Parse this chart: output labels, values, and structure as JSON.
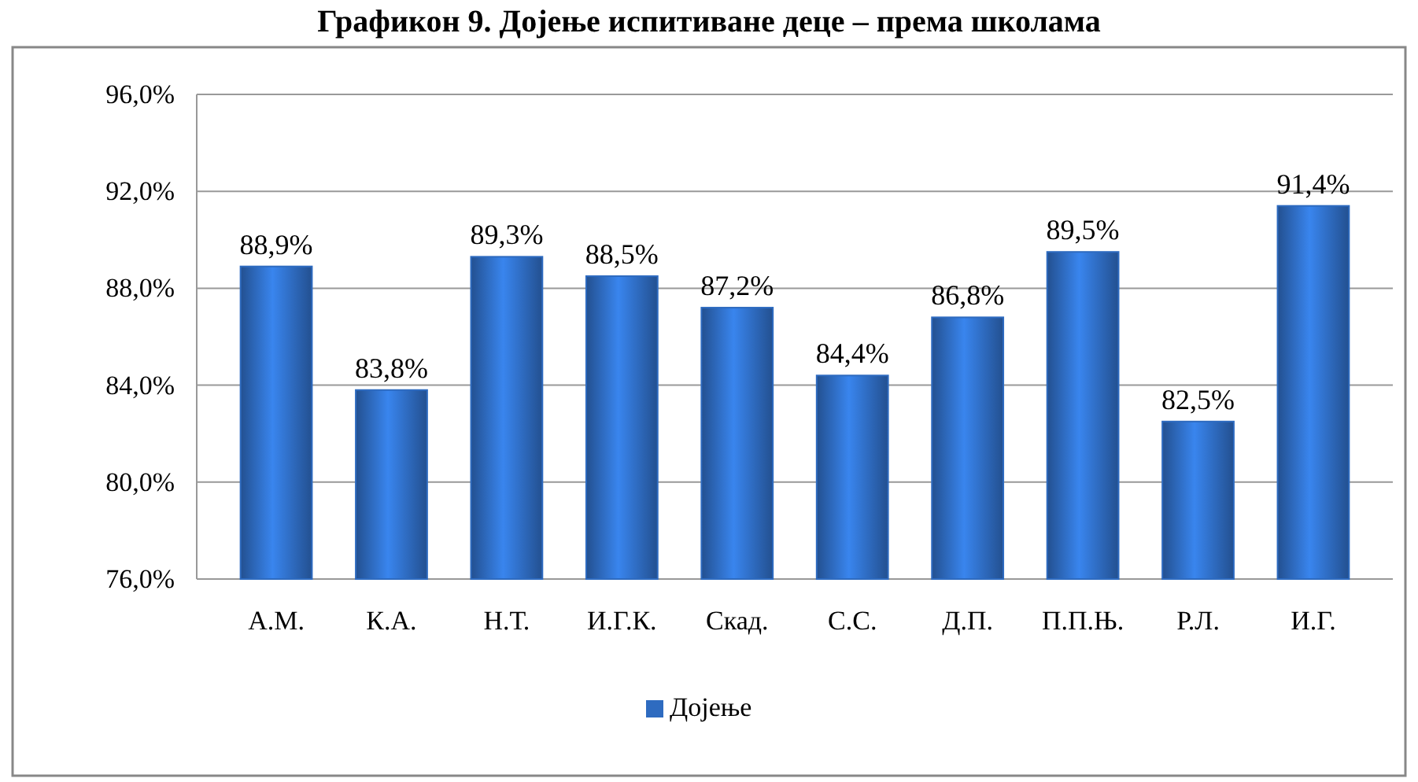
{
  "chart_data": {
    "type": "bar",
    "title": "Графикон 9. Дојење испитиване деце – према школама",
    "categories": [
      "А.М.",
      "К.А.",
      "Н.Т.",
      "И.Г.К.",
      "Скад.",
      "С.С.",
      "Д.П.",
      "П.П.Њ.",
      "Р.Л.",
      "И.Г."
    ],
    "series": [
      {
        "name": "Дојење",
        "color": "#2e6bc0",
        "values": [
          88.9,
          83.8,
          89.3,
          88.5,
          87.2,
          84.4,
          86.8,
          89.5,
          82.5,
          91.4
        ],
        "value_labels": [
          "88,9%",
          "83,8%",
          "89,3%",
          "88,5%",
          "87,2%",
          "84,4%",
          "86,8%",
          "89,5%",
          "82,5%",
          "91,4%"
        ]
      }
    ],
    "ylim": [
      76,
      96
    ],
    "yticks": [
      {
        "value": 76,
        "label": "76,0%"
      },
      {
        "value": 80,
        "label": "80,0%"
      },
      {
        "value": 84,
        "label": "84,0%"
      },
      {
        "value": 88,
        "label": "88,0%"
      },
      {
        "value": 92,
        "label": "92,0%"
      },
      {
        "value": 96,
        "label": "96,0%"
      }
    ],
    "grid": "y",
    "legend": "bottom"
  }
}
